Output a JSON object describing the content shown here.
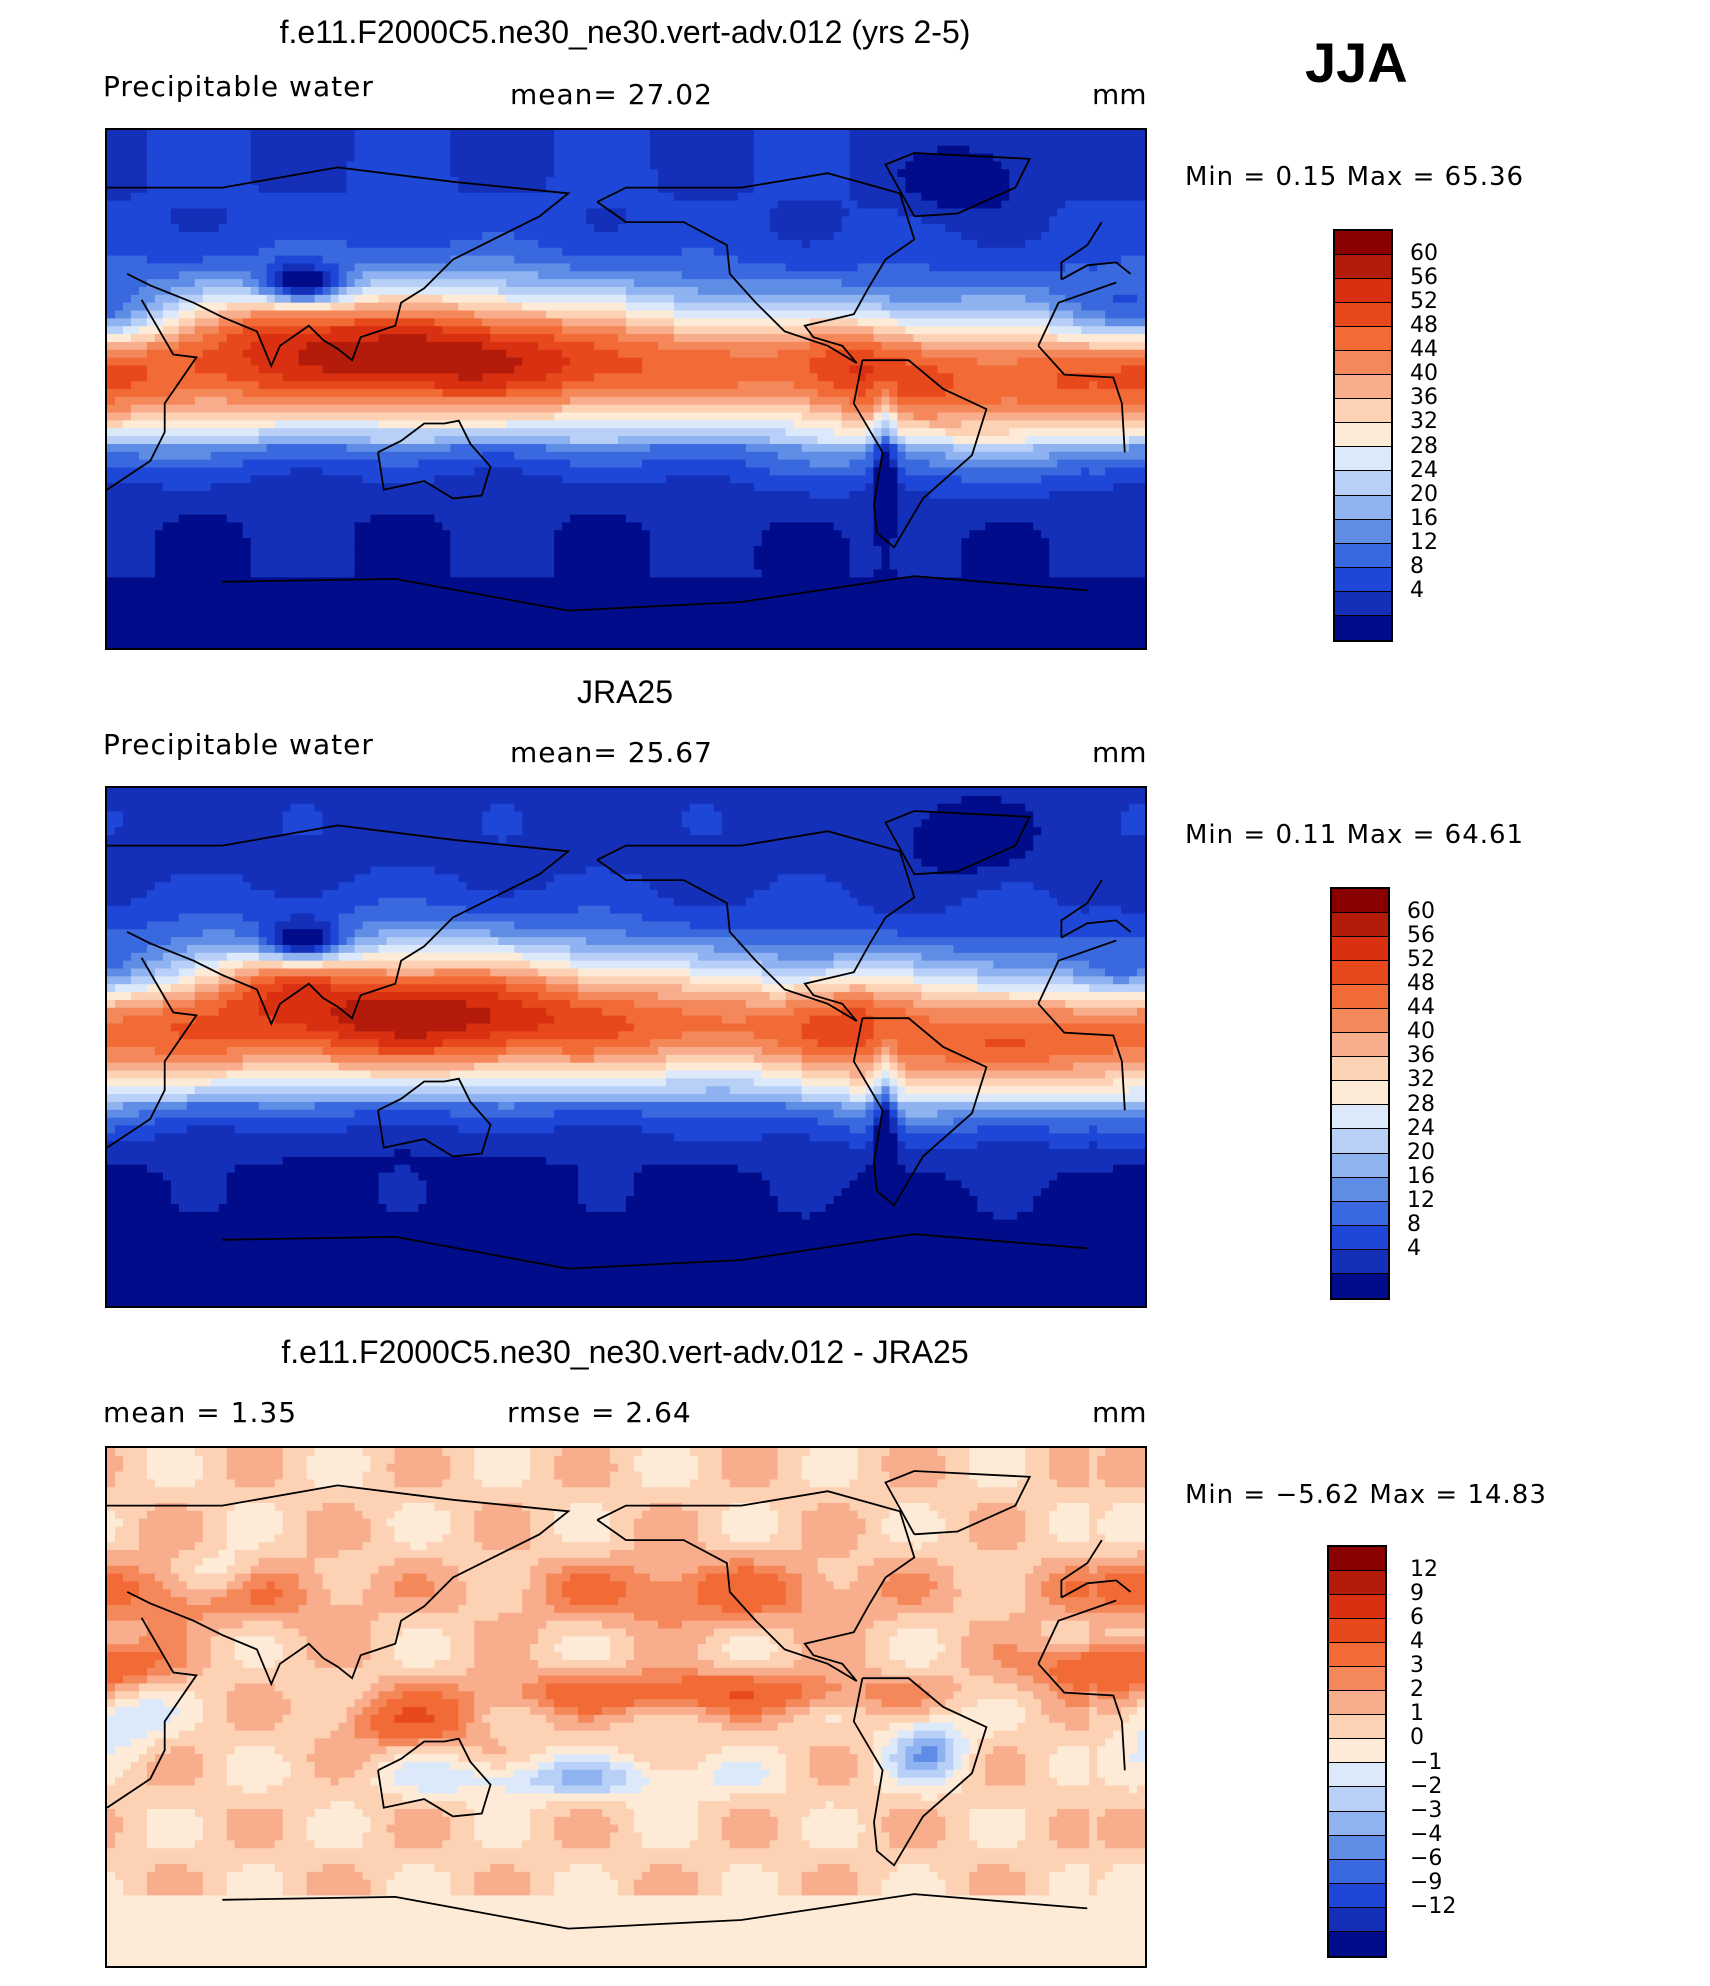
{
  "season": "JJA",
  "panels": [
    {
      "title": "f.e11.F2000C5.ne30_ne30.vert-adv.012 (yrs 2-5)",
      "left_label": "Precipitable  water",
      "center_label": "mean=   27.02",
      "units": "mm",
      "minmax": "Min  =     0.15  Max  =    65.36",
      "field": "model"
    },
    {
      "title": "JRA25",
      "left_label": "Precipitable  water",
      "center_label": "mean=   25.67",
      "units": "mm",
      "minmax": "Min  =     0.11  Max  =    64.61",
      "field": "obs"
    },
    {
      "title": "f.e11.F2000C5.ne30_ne30.vert-adv.012 - JRA25",
      "left_label": "mean  =      1.35",
      "center_label": "rmse  =      2.64",
      "units": "mm",
      "minmax": "Min  =    −5.62  Max  =    14.83",
      "field": "diff"
    }
  ],
  "colorbars": {
    "pw": {
      "labels": [
        "60",
        "56",
        "52",
        "48",
        "44",
        "40",
        "36",
        "32",
        "28",
        "24",
        "20",
        "16",
        "12",
        "8",
        "4"
      ],
      "colors": [
        "#8b0000",
        "#b31b0a",
        "#d83010",
        "#e8491c",
        "#f26a35",
        "#f5885a",
        "#f8ad8c",
        "#fdd2b4",
        "#fdebd8",
        "#dce9fb",
        "#b8d0f7",
        "#8fb2f0",
        "#5f8de6",
        "#3a68df",
        "#1e47d8",
        "#1430b8",
        "#000c8a"
      ]
    },
    "diff": {
      "labels": [
        "12",
        "9",
        "6",
        "4",
        "3",
        "2",
        "1",
        "0",
        "−1",
        "−2",
        "−3",
        "−4",
        "−6",
        "−9",
        "−12"
      ],
      "colors": [
        "#8b0000",
        "#b31b0a",
        "#d83010",
        "#e8491c",
        "#f26a35",
        "#f5885a",
        "#f8ad8c",
        "#fdd2b4",
        "#fdebd8",
        "#dce9fb",
        "#b8d0f7",
        "#8fb2f0",
        "#5f8de6",
        "#3a68df",
        "#1e47d8",
        "#1430b8",
        "#000c8a"
      ]
    }
  }
}
